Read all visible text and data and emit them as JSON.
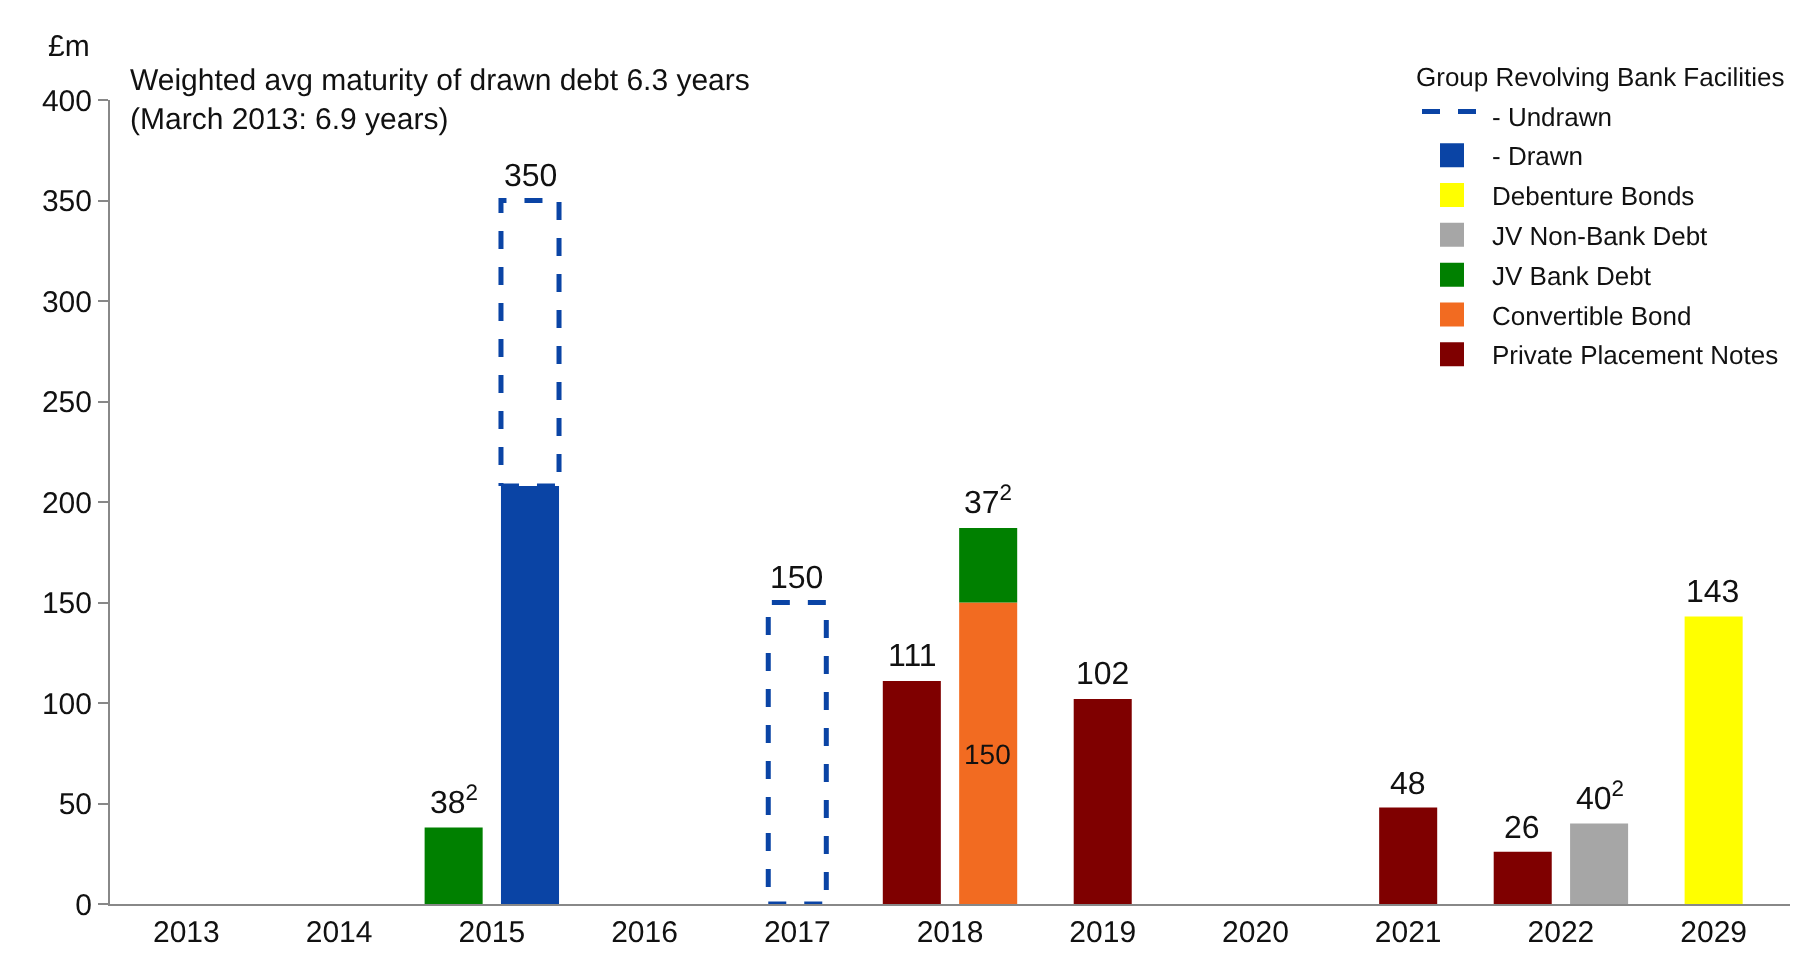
{
  "chart_data": {
    "type": "bar",
    "title": "Weighted avg maturity of drawn debt 6.3 years",
    "subtitle": "(March 2013: 6.9 years)",
    "ylabel": "£m",
    "legend_title": "Group Revolving Bank Facilities",
    "categories": [
      "2013",
      "2014",
      "2015",
      "2016",
      "2017",
      "2018",
      "2019",
      "2020",
      "2021",
      "2022",
      "2029"
    ],
    "series": [
      {
        "name": "Private Placement Notes",
        "color": "#7f0000",
        "values": [
          null,
          null,
          null,
          null,
          null,
          111,
          102,
          null,
          48,
          26,
          null
        ],
        "value_labels": [
          null,
          null,
          null,
          null,
          null,
          "111",
          "102",
          null,
          "48",
          "26",
          null
        ]
      },
      {
        "name": "Convertible Bond",
        "color": "#f26b21",
        "values": [
          null,
          null,
          null,
          null,
          null,
          150,
          null,
          null,
          null,
          null,
          null
        ],
        "value_labels": [
          null,
          null,
          null,
          null,
          null,
          "150",
          null,
          null,
          null,
          null,
          null
        ]
      },
      {
        "name": "JV Bank Debt",
        "color": "#008000",
        "values": [
          null,
          null,
          38,
          null,
          null,
          37,
          null,
          null,
          null,
          null,
          null
        ],
        "base": [
          null,
          null,
          0,
          null,
          null,
          150,
          null,
          null,
          null,
          null,
          null
        ],
        "value_labels": [
          null,
          null,
          "38$^{2}$",
          null,
          null,
          "37$^{2}$",
          null,
          null,
          null,
          null,
          null
        ]
      },
      {
        "name": "JV Non-Bank Debt",
        "color": "#a6a6a6",
        "values": [
          null,
          null,
          null,
          null,
          null,
          null,
          null,
          null,
          null,
          40,
          null
        ],
        "value_labels": [
          null,
          null,
          null,
          null,
          null,
          null,
          null,
          null,
          null,
          "40$^{2}$",
          null
        ]
      },
      {
        "name": "Debenture Bonds",
        "color": "#ffff00",
        "values": [
          null,
          null,
          null,
          null,
          null,
          null,
          null,
          null,
          null,
          null,
          143
        ],
        "value_labels": [
          null,
          null,
          null,
          null,
          null,
          null,
          null,
          null,
          null,
          null,
          "143"
        ]
      },
      {
        "name": "- Drawn",
        "color": "#0a44a5",
        "values": [
          null,
          null,
          208,
          null,
          null,
          null,
          null,
          null,
          null,
          null,
          null
        ]
      },
      {
        "name": "- Undrawn",
        "color": "#0a44a5",
        "line_style": "dashed",
        "values": [
          null,
          null,
          142,
          null,
          150,
          null,
          null,
          null,
          null,
          null,
          null
        ],
        "base": [
          null,
          null,
          208,
          null,
          0,
          null,
          null,
          null,
          null,
          null,
          null
        ],
        "value_labels": [
          null,
          null,
          "350",
          null,
          "150",
          null,
          null,
          null,
          null,
          null,
          null
        ]
      }
    ],
    "ylim": [
      0,
      400
    ],
    "yticks": [
      0,
      50,
      100,
      150,
      200,
      250,
      300,
      350,
      400
    ],
    "legend": "top right"
  }
}
